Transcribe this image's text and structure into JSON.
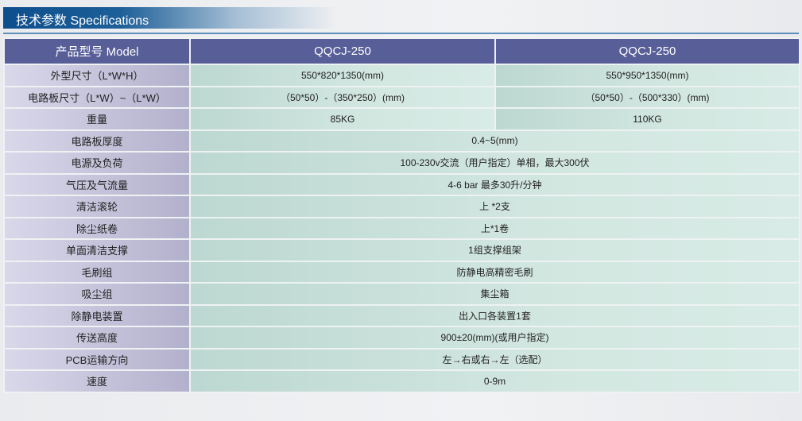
{
  "title": "技术参数  Specifications",
  "header": {
    "label": "产品型号 Model",
    "models": [
      "QQCJ-250",
      "QQCJ-250"
    ]
  },
  "rows": [
    {
      "label": "外型尺寸（L*W*H）",
      "values": [
        "550*820*1350(mm)",
        "550*950*1350(mm)"
      ]
    },
    {
      "label": "电路板尺寸（L*W）~（L*W）",
      "values": [
        "（50*50）-（350*250）(mm)",
        "（50*50）-（500*330）(mm)"
      ]
    },
    {
      "label": "重量",
      "values": [
        "85KG",
        "110KG"
      ]
    },
    {
      "label": "电路板厚度",
      "value": "0.4~5(mm)"
    },
    {
      "label": "电源及负荷",
      "value": "100-230v交流（用户指定）单相，最大300伏"
    },
    {
      "label": "气压及气流量",
      "value": "4-6 bar 最多30升/分钟"
    },
    {
      "label": "清洁滚轮",
      "value": "上 *2支"
    },
    {
      "label": "除尘纸卷",
      "value": "上*1卷"
    },
    {
      "label": "单面清洁支撑",
      "value": "1组支撑组架"
    },
    {
      "label": "毛刷组",
      "value": "防静电高精密毛刷"
    },
    {
      "label": "吸尘组",
      "value": "集尘箱"
    },
    {
      "label": "除静电装置",
      "value": "出入口各装置1套"
    },
    {
      "label": "传送高度",
      "value": "900±20(mm)(或用户指定)"
    },
    {
      "label": "PCB运输方向",
      "value": "左→右或右→左（选配）"
    },
    {
      "label": "速度",
      "value": "0-9m"
    }
  ]
}
